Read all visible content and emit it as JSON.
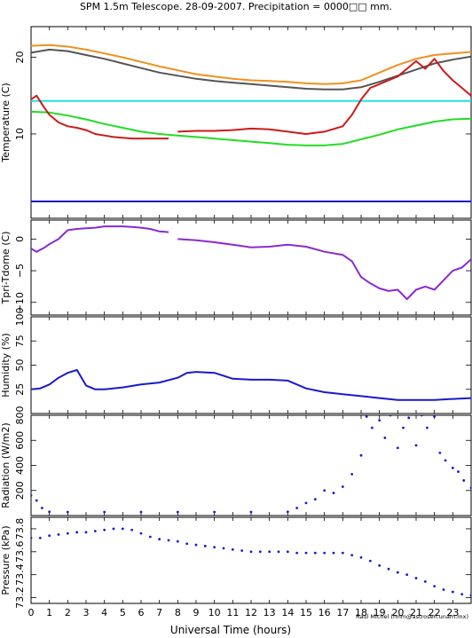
{
  "title": "SPM 1.5m Telescope. 28-09-2007. Precipitation = 0000□□ mm.",
  "credit": "Raul Michel (rmm@astrosen.unam.mx)",
  "x_axis": {
    "label": "Universal Time (hours)",
    "range": [
      0,
      24
    ],
    "tick_labels": [
      "0",
      "1",
      "2",
      "3",
      "4",
      "5",
      "6",
      "7",
      "8",
      "9",
      "10",
      "11",
      "12",
      "13",
      "14",
      "15",
      "16",
      "17",
      "18",
      "19",
      "20",
      "21",
      "22",
      "23"
    ]
  },
  "colors": {
    "orange": "#f0901f",
    "gray": "#555555",
    "cyan": "#22e0e0",
    "red": "#cc1a1a",
    "green": "#22dd22",
    "blue": "#1a1acc",
    "purple": "#8a2ad0"
  },
  "chart_data": [
    {
      "type": "line",
      "ylabel": "Temperature (C)",
      "ylim": [
        -1,
        24
      ],
      "yticks": [
        10,
        20
      ],
      "x": [
        0,
        1,
        2,
        3,
        4,
        5,
        6,
        7,
        8,
        9,
        10,
        11,
        12,
        13,
        14,
        15,
        16,
        17,
        18,
        19,
        20,
        21,
        22,
        23,
        24
      ],
      "series": [
        {
          "color": "orange",
          "values": [
            21.5,
            21.6,
            21.4,
            21.0,
            20.5,
            20.0,
            19.4,
            18.8,
            18.3,
            17.8,
            17.5,
            17.2,
            17.0,
            16.9,
            16.8,
            16.6,
            16.5,
            16.6,
            17.0,
            18.0,
            19.0,
            19.8,
            20.3,
            20.5,
            20.7
          ]
        },
        {
          "color": "gray",
          "values": [
            20.6,
            21.0,
            20.8,
            20.3,
            19.8,
            19.2,
            18.6,
            18.0,
            17.6,
            17.2,
            16.9,
            16.7,
            16.5,
            16.3,
            16.1,
            15.9,
            15.8,
            15.8,
            16.1,
            16.8,
            17.6,
            18.4,
            19.2,
            19.7,
            20.1
          ]
        },
        {
          "color": "cyan",
          "values": [
            14.3,
            14.3,
            14.3,
            14.3,
            14.3,
            14.3,
            14.3,
            14.3,
            14.3,
            14.3,
            14.3,
            14.3,
            14.3,
            14.3,
            14.3,
            14.3,
            14.3,
            14.3,
            14.3,
            14.3,
            14.3,
            14.3,
            14.3,
            14.3,
            14.3
          ]
        },
        {
          "color": "green",
          "values": [
            12.9,
            12.8,
            12.4,
            11.9,
            11.3,
            10.8,
            10.3,
            10.0,
            9.8,
            9.6,
            9.4,
            9.2,
            9.0,
            8.8,
            8.6,
            8.5,
            8.5,
            8.7,
            9.3,
            9.9,
            10.6,
            11.1,
            11.6,
            11.9,
            12.0
          ]
        },
        {
          "color": "blue",
          "values": [
            1.2,
            1.2,
            1.2,
            1.2,
            1.2,
            1.2,
            1.2,
            1.2,
            1.2,
            1.2,
            1.2,
            1.2,
            1.2,
            1.2,
            1.2,
            1.2,
            1.2,
            1.2,
            1.2,
            1.2,
            1.2,
            1.2,
            1.2,
            1.2,
            1.2
          ]
        },
        {
          "color": "red",
          "segments": [
            {
              "x": [
                0,
                0.3,
                0.7,
                1.0,
                1.5,
                2.0,
                2.5,
                3.0,
                3.5,
                4.0,
                4.5,
                5.0,
                5.5,
                6.0,
                6.5,
                7.0,
                7.5
              ],
              "y": [
                14.5,
                15.0,
                13.5,
                12.5,
                11.5,
                11.0,
                10.8,
                10.5,
                10.0,
                9.8,
                9.6,
                9.5,
                9.4,
                9.4,
                9.4,
                9.4,
                9.4
              ]
            },
            {
              "x": [
                8,
                9,
                10,
                11,
                12,
                13,
                14,
                15,
                16,
                17,
                17.5,
                18,
                18.5,
                19,
                19.5,
                20,
                20.5,
                21,
                21.5,
                22,
                22.5,
                23,
                23.5,
                24
              ],
              "y": [
                10.3,
                10.4,
                10.4,
                10.5,
                10.7,
                10.6,
                10.3,
                10.0,
                10.3,
                11.0,
                12.5,
                14.5,
                16.0,
                16.5,
                17.0,
                17.5,
                18.5,
                19.5,
                18.5,
                19.8,
                18.2,
                17.0,
                16.0,
                15.0
              ]
            }
          ]
        }
      ]
    },
    {
      "type": "line",
      "ylabel": "Tpri-Tdome (C)",
      "ylim": [
        -12,
        3
      ],
      "yticks": [
        0,
        -5,
        -10
      ],
      "ytick_labels": [
        "0",
        "−5",
        "−10"
      ],
      "series": [
        {
          "color": "purple",
          "segments": [
            {
              "x": [
                0,
                0.3,
                0.7,
                1.0,
                1.5,
                2.0,
                2.5,
                3.0,
                3.5,
                4.0,
                4.5,
                5.0,
                5.5,
                6.0,
                6.5,
                7.0,
                7.5
              ],
              "y": [
                -1.5,
                -2.0,
                -1.4,
                -0.8,
                0.0,
                1.4,
                1.6,
                1.7,
                1.8,
                2.0,
                2.0,
                2.0,
                1.9,
                1.8,
                1.6,
                1.2,
                1.1
              ]
            },
            {
              "x": [
                8,
                9,
                10,
                11,
                12,
                13,
                14,
                15,
                16,
                17,
                17.5,
                18,
                18.5,
                19,
                19.5,
                20,
                20.5,
                21,
                21.5,
                22,
                22.5,
                23,
                23.5,
                24
              ],
              "y": [
                0.0,
                -0.2,
                -0.5,
                -0.9,
                -1.3,
                -1.2,
                -0.9,
                -1.2,
                -2.0,
                -2.5,
                -3.5,
                -6.0,
                -7.0,
                -7.8,
                -8.2,
                -8.0,
                -9.5,
                -8.0,
                -7.5,
                -8.0,
                -6.5,
                -5.0,
                -4.5,
                -3.2
              ]
            }
          ]
        }
      ]
    },
    {
      "type": "line",
      "ylabel": "Humidity (%)",
      "ylim": [
        0,
        100
      ],
      "yticks": [
        0,
        25,
        50,
        75,
        100
      ],
      "ytick_labels": [
        "",
        "25",
        "50",
        "75",
        "100"
      ],
      "series": [
        {
          "color": "blue",
          "x": [
            0,
            0.5,
            1.0,
            1.5,
            2.0,
            2.5,
            3.0,
            3.5,
            4.0,
            5.0,
            6.0,
            7.0,
            8.0,
            8.5,
            9.0,
            10.0,
            11.0,
            12.0,
            13.0,
            14.0,
            15.0,
            16.0,
            17.0,
            18.0,
            19.0,
            20.0,
            21.0,
            22.0,
            23.0,
            24.0
          ],
          "values": [
            25,
            26,
            30,
            37,
            42,
            45,
            29,
            25,
            25,
            27,
            30,
            32,
            37,
            42,
            43,
            42,
            36,
            35,
            35,
            34,
            26,
            22,
            20,
            18,
            16,
            14,
            14,
            14,
            15,
            16
          ]
        }
      ]
    },
    {
      "type": "scatter",
      "ylabel": "Radiation (W/m2)",
      "ylim": [
        0,
        800
      ],
      "yticks": [
        0,
        200,
        400,
        600,
        800
      ],
      "ytick_labels": [
        "",
        "200",
        "400",
        "600",
        "800"
      ],
      "series": [
        {
          "color": "blue",
          "x": [
            0,
            0.3,
            0.6,
            1.0,
            2.0,
            4.0,
            6.0,
            8.0,
            10.0,
            12.0,
            14.0,
            14.5,
            15.0,
            15.5,
            16.0,
            16.5,
            17.0,
            17.5,
            18.0,
            18.3,
            18.6,
            19.0,
            19.3,
            19.6,
            20.0,
            20.3,
            20.6,
            21.0,
            21.3,
            21.6,
            22.0,
            22.3,
            22.6,
            23.0,
            23.3,
            23.6,
            24.0
          ],
          "values": [
            160,
            120,
            60,
            30,
            28,
            28,
            28,
            28,
            28,
            28,
            30,
            60,
            100,
            130,
            200,
            180,
            230,
            330,
            480,
            790,
            700,
            760,
            620,
            800,
            540,
            700,
            780,
            560,
            800,
            700,
            790,
            500,
            440,
            380,
            350,
            280,
            220
          ]
        }
      ]
    },
    {
      "type": "scatter",
      "ylabel": "Pressure (kPa)",
      "ylim": [
        73.15,
        73.9
      ],
      "yticks": [
        73.2,
        73.4,
        73.6,
        73.8
      ],
      "ytick_labels": [
        "73.2",
        "73.4",
        "73.6",
        "73.8"
      ],
      "series": [
        {
          "color": "blue",
          "x": [
            0,
            0.5,
            1,
            1.5,
            2,
            2.5,
            3,
            3.5,
            4,
            4.5,
            5,
            5.5,
            6,
            6.5,
            7,
            7.5,
            8,
            8.5,
            9,
            9.5,
            10,
            10.5,
            11,
            11.5,
            12,
            12.5,
            13,
            13.5,
            14,
            14.5,
            15,
            15.5,
            16,
            16.5,
            17,
            17.5,
            18,
            18.5,
            19,
            19.5,
            20,
            20.5,
            21,
            21.5,
            22,
            22.5,
            23,
            23.5,
            24
          ],
          "values": [
            73.72,
            73.72,
            73.74,
            73.75,
            73.76,
            73.77,
            73.77,
            73.78,
            73.79,
            73.8,
            73.8,
            73.79,
            73.76,
            73.73,
            73.71,
            73.7,
            73.69,
            73.67,
            73.66,
            73.65,
            73.64,
            73.63,
            73.62,
            73.61,
            73.6,
            73.6,
            73.6,
            73.6,
            73.6,
            73.59,
            73.59,
            73.59,
            73.59,
            73.59,
            73.59,
            73.57,
            73.55,
            73.52,
            73.48,
            73.45,
            73.42,
            73.4,
            73.37,
            73.34,
            73.3,
            73.27,
            73.25,
            73.23,
            73.22
          ]
        }
      ]
    }
  ]
}
